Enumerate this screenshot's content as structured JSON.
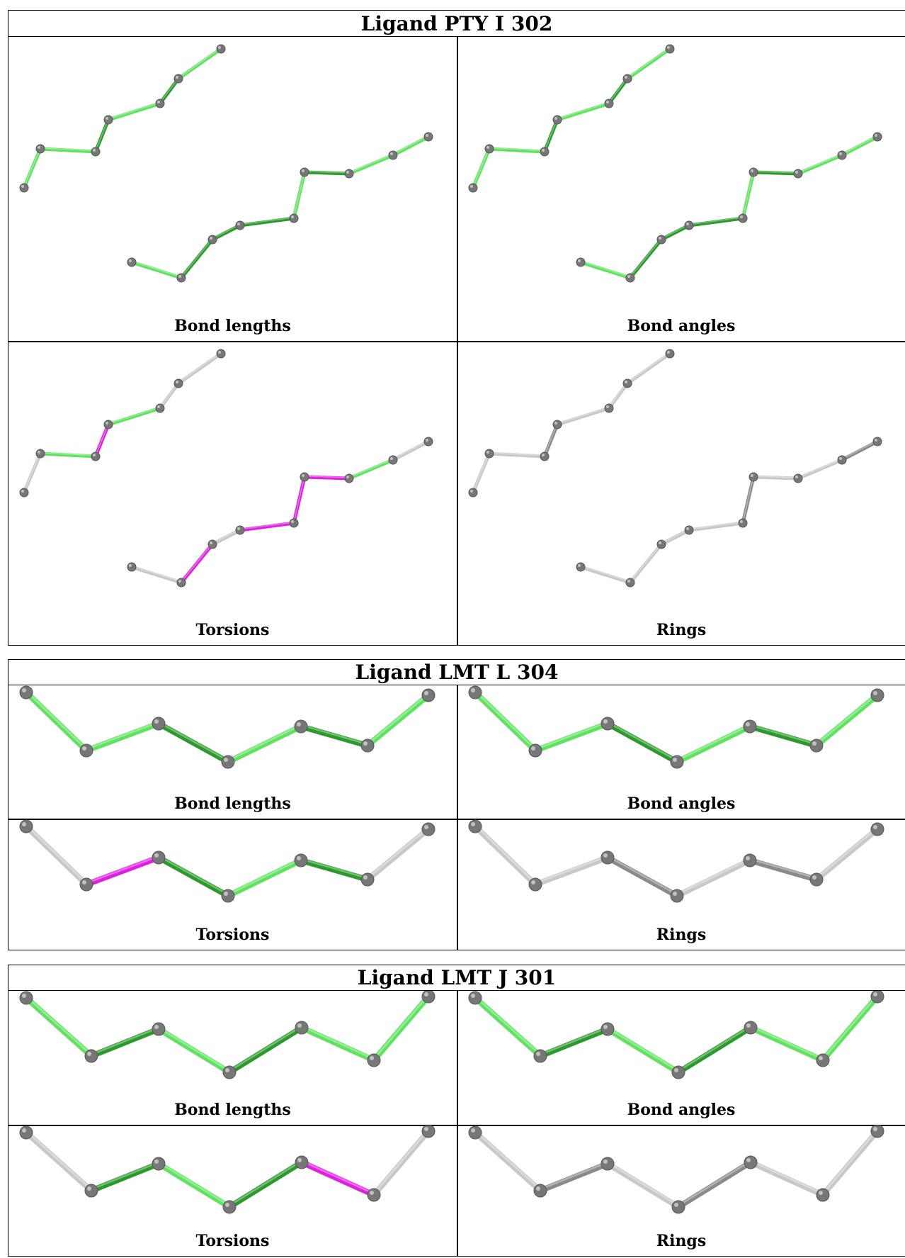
{
  "colors": {
    "green_light": "#5fe35f",
    "green_dark": "#2a9a2a",
    "green_mid": "#3ec83e",
    "magenta": "#e020e0",
    "magenta_dark": "#8a3a8a",
    "grey_light": "#c8c8c8",
    "grey_dark": "#8a8a8a",
    "atom": "#777777"
  },
  "ligands": [
    {
      "title": "Ligand PTY I 302",
      "molecule": "pty",
      "panels": [
        {
          "label": "Bond lengths",
          "coloring": [
            "g",
            "g",
            "gd",
            "g",
            "gd",
            "g",
            "g",
            "gd",
            "g",
            "gd",
            "g",
            "gd",
            "g",
            "g",
            "gd"
          ]
        },
        {
          "label": "Bond angles",
          "coloring": [
            "g",
            "g",
            "gd",
            "g",
            "gd",
            "g",
            "g",
            "gd",
            "g",
            "gd",
            "g",
            "gd",
            "g",
            "g",
            "gd"
          ]
        },
        {
          "label": "Torsions",
          "coloring": [
            "w",
            "g",
            "m",
            "g",
            "w",
            "w",
            "w",
            "m",
            "m",
            "m",
            "m",
            "m",
            "g",
            "w",
            "w"
          ]
        },
        {
          "label": "Rings",
          "coloring": [
            "w",
            "w",
            "wd",
            "w",
            "w",
            "w",
            "w",
            "w",
            "wd",
            "w",
            "wd",
            "w",
            "w",
            "wd",
            "w"
          ]
        }
      ]
    },
    {
      "title": "Ligand LMT L 304",
      "molecule": "lmt1",
      "panels": [
        {
          "label": "Bond lengths",
          "coloring": [
            "g",
            "g",
            "gd",
            "g",
            "gd",
            "g"
          ]
        },
        {
          "label": "Bond angles",
          "coloring": [
            "g",
            "g",
            "gd",
            "g",
            "gd",
            "g"
          ]
        },
        {
          "label": "Torsions",
          "coloring": [
            "w",
            "m",
            "gd",
            "g",
            "gd",
            "w"
          ]
        },
        {
          "label": "Rings",
          "coloring": [
            "w",
            "w",
            "wd",
            "w",
            "wd",
            "w"
          ]
        }
      ]
    },
    {
      "title": "Ligand LMT J 301",
      "molecule": "lmt2",
      "panels": [
        {
          "label": "Bond lengths",
          "coloring": [
            "g",
            "gd",
            "g",
            "gd",
            "g",
            "g"
          ]
        },
        {
          "label": "Bond angles",
          "coloring": [
            "g",
            "gd",
            "g",
            "gd",
            "g",
            "g"
          ]
        },
        {
          "label": "Torsions",
          "coloring": [
            "w",
            "gd",
            "g",
            "gd",
            "m",
            "w"
          ]
        },
        {
          "label": "Rings",
          "coloring": [
            "w",
            "wd",
            "w",
            "wd",
            "w",
            "w"
          ]
        }
      ]
    }
  ]
}
